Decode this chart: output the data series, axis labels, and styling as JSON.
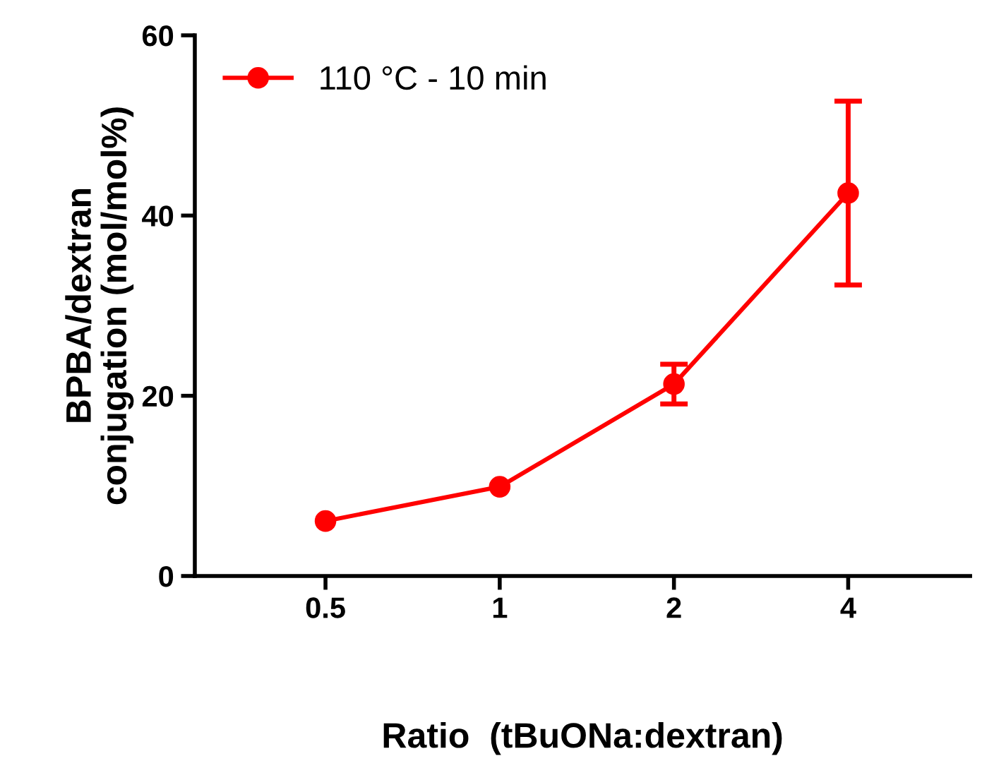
{
  "chart_data": {
    "type": "line",
    "xlabel": "Ratio  (tBuONa:dextran)",
    "ylabel": "BPBA/dextran\nconjugation (mol/mol%)",
    "categories": [
      "0.5",
      "1",
      "2",
      "4"
    ],
    "series": [
      {
        "name": "110 °C - 10 min",
        "color": "#ff0000",
        "values": [
          6.1,
          9.9,
          21.3,
          42.5
        ],
        "errors": [
          null,
          null,
          2.2,
          10.2
        ]
      }
    ],
    "ylim": [
      0,
      60
    ],
    "yticks": [
      0,
      20,
      40,
      60
    ],
    "grid": false,
    "legend": "top left",
    "marker": "circle",
    "line_style": "solid"
  }
}
